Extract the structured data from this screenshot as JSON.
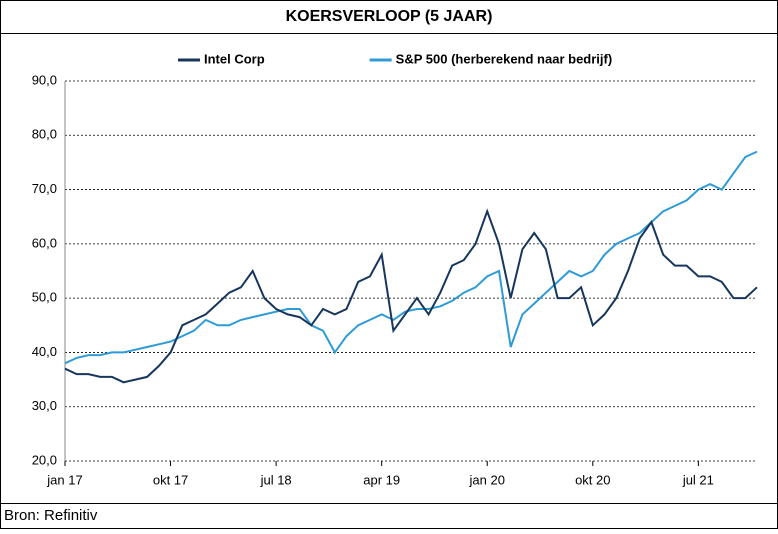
{
  "chart_data": {
    "type": "line",
    "title": "KOERSVERLOOP (5 JAAR)",
    "source": "Bron: Refinitiv",
    "categories": [
      "jan 17",
      null,
      null,
      null,
      null,
      null,
      null,
      null,
      null,
      "okt 17",
      null,
      null,
      null,
      null,
      null,
      null,
      null,
      null,
      "jul 18",
      null,
      null,
      null,
      null,
      null,
      null,
      null,
      null,
      "apr 19",
      null,
      null,
      null,
      null,
      null,
      null,
      null,
      null,
      "jan 20",
      null,
      null,
      null,
      null,
      null,
      null,
      null,
      null,
      "okt 20",
      null,
      null,
      null,
      null,
      null,
      null,
      null,
      null,
      "jul 21",
      null,
      null,
      null,
      null,
      null
    ],
    "series": [
      {
        "name": "Intel Corp",
        "color": "#17365d",
        "values": [
          37,
          36,
          36,
          35.5,
          35.5,
          34.5,
          35,
          35.5,
          37.5,
          40,
          45,
          46,
          47,
          49,
          51,
          52,
          55,
          50,
          48,
          47,
          46.5,
          45,
          48,
          47,
          48,
          53,
          54,
          58,
          44,
          47,
          50,
          47,
          51,
          56,
          57,
          60,
          66,
          60,
          50,
          59,
          62,
          59,
          50,
          50,
          52,
          45,
          47,
          50,
          55,
          61,
          64,
          58,
          56,
          56,
          54,
          54,
          53,
          50,
          50,
          52
        ]
      },
      {
        "name": "S&P 500 (herberekend naar bedrijf)",
        "color": "#2e9bd6",
        "values": [
          38,
          39,
          39.5,
          39.5,
          40,
          40,
          40.5,
          41,
          41.5,
          42,
          43,
          44,
          46,
          45,
          45,
          46,
          46.5,
          47,
          47.5,
          48,
          48,
          45,
          44,
          40,
          43,
          45,
          46,
          47,
          46,
          47.5,
          48,
          48,
          48.5,
          49.5,
          51,
          52,
          54,
          55,
          41,
          47,
          49,
          51,
          53,
          55,
          54,
          55,
          58,
          60,
          61,
          62,
          64,
          66,
          67,
          68,
          70,
          71,
          70,
          73,
          76,
          77
        ]
      }
    ],
    "ylim": [
      20,
      90
    ],
    "yticks": [
      {
        "value": 20,
        "label": "20,0"
      },
      {
        "value": 30,
        "label": "30,0"
      },
      {
        "value": 40,
        "label": "40,0"
      },
      {
        "value": 50,
        "label": "50,0"
      },
      {
        "value": 60,
        "label": "60,0"
      },
      {
        "value": 70,
        "label": "70,0"
      },
      {
        "value": 80,
        "label": "80,0"
      },
      {
        "value": 90,
        "label": "90,0"
      }
    ],
    "grid": true,
    "legend": "top"
  }
}
